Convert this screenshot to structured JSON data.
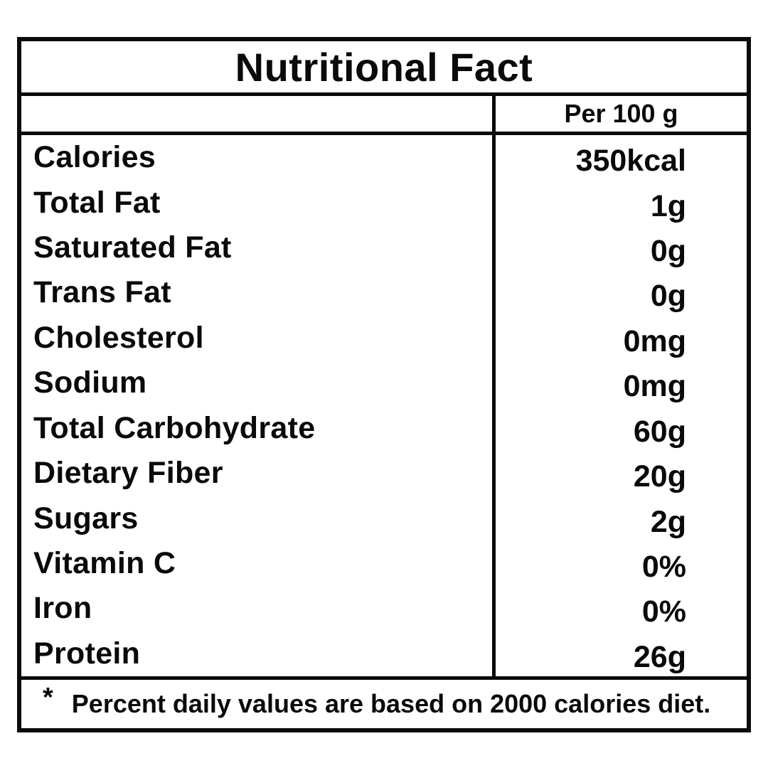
{
  "label": {
    "title": "Nutritional Fact",
    "column_header": "Per 100 g",
    "rows": [
      {
        "name": "Calories",
        "value": "350kcal"
      },
      {
        "name": "Total Fat",
        "value": "1g"
      },
      {
        "name": "Saturated Fat",
        "value": "0g"
      },
      {
        "name": "Trans Fat",
        "value": "0g"
      },
      {
        "name": "Cholesterol",
        "value": "0mg"
      },
      {
        "name": "Sodium",
        "value": "0mg"
      },
      {
        "name": "Total Carbohydrate",
        "value": "60g"
      },
      {
        "name": "Dietary Fiber",
        "value": "20g"
      },
      {
        "name": "Sugars",
        "value": "2g"
      },
      {
        "name": "Vitamin C",
        "value": "0%"
      },
      {
        "name": "Iron",
        "value": "0%"
      },
      {
        "name": "Protein",
        "value": "26g"
      }
    ],
    "footnote_marker": "*",
    "footnote": "Percent daily values are based on 2000 calories diet.",
    "colors": {
      "text": "#0a0a0a",
      "border": "#0a0a0a",
      "background": "#ffffff"
    }
  }
}
